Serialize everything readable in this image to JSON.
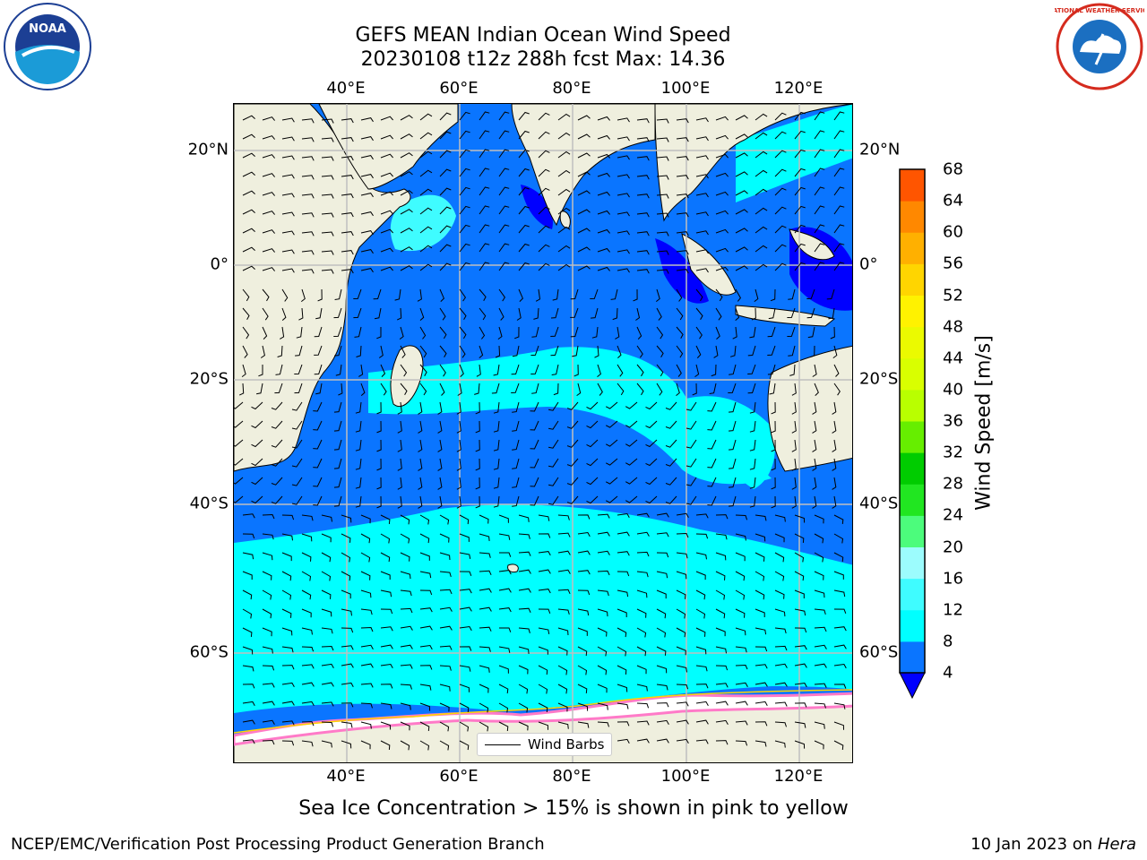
{
  "title": {
    "line1": "GEFS MEAN Indian Ocean Wind Speed",
    "line2": "20230108 t12z 288h fcst   Max: 14.36"
  },
  "axes": {
    "lon_ticks": [
      "40°E",
      "60°E",
      "80°E",
      "100°E",
      "120°E"
    ],
    "lat_ticks": [
      "20°N",
      "0°",
      "20°S",
      "40°S",
      "60°S"
    ],
    "lon_range": [
      20,
      130
    ],
    "lat_range": [
      -73,
      28
    ]
  },
  "legend": {
    "label": "Wind Barbs"
  },
  "colorbar": {
    "label": "Wind Speed [m/s]",
    "ticks": [
      "68",
      "64",
      "60",
      "56",
      "52",
      "48",
      "44",
      "40",
      "36",
      "32",
      "28",
      "24",
      "20",
      "16",
      "12",
      "8",
      "4"
    ],
    "colors_bottom_to_top": [
      "#0a75ff",
      "#00ffff",
      "#3ffcff",
      "#9cfcfd",
      "#4cfc7c",
      "#21e621",
      "#00cc00",
      "#66ee00",
      "#b9ff00",
      "#d9ff00",
      "#ebfa00",
      "#fff200",
      "#ffd500",
      "#ffb000",
      "#ff8800",
      "#ff5500",
      "#ff2400",
      "#ff0000"
    ],
    "under_color": "#0000ff"
  },
  "caption": "Sea Ice Concentration > 15% is shown in pink to yellow",
  "footer": {
    "left": "NCEP/EMC/Verification Post Processing Product Generation Branch",
    "right_prefix": "10 Jan 2023 on ",
    "right_machine": "Hera"
  },
  "logos": {
    "left": "NOAA",
    "right": "NATIONAL WEATHER SERVICE"
  },
  "colors": {
    "land": "#efefde",
    "low_wind": "#0a75ff",
    "mid_wind": "#00ffff",
    "very_low_wind": "#0000ff",
    "sea_ice": "#ffffff",
    "gridline": "#bfbfbf"
  }
}
